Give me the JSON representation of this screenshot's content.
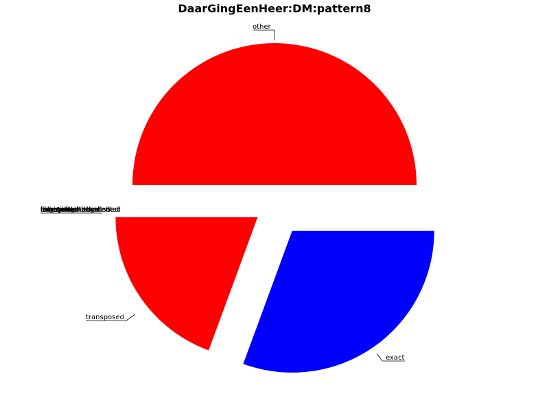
{
  "chart_data": {
    "type": "pie",
    "title": "DaarGingEenHeer:DM:pattern8",
    "slices": [
      {
        "label": "other",
        "value": 50.0,
        "color": "#ff0000"
      },
      {
        "label": "transposed",
        "value": 19.4,
        "color": "#ff0000"
      },
      {
        "label": "exact",
        "value": 30.6,
        "color": "#0000ff"
      }
    ],
    "overlapping_labels": [
      "transposed-diminished",
      "transposed-augmented",
      "diminished",
      "augmented",
      "exact-diminished",
      "exact-augmented",
      "transposed-inverted",
      "exact-inverted",
      "inverted",
      "retrograde",
      "full"
    ],
    "zero_slice_color": "#ff0000",
    "legend": "none",
    "grid": false
  }
}
